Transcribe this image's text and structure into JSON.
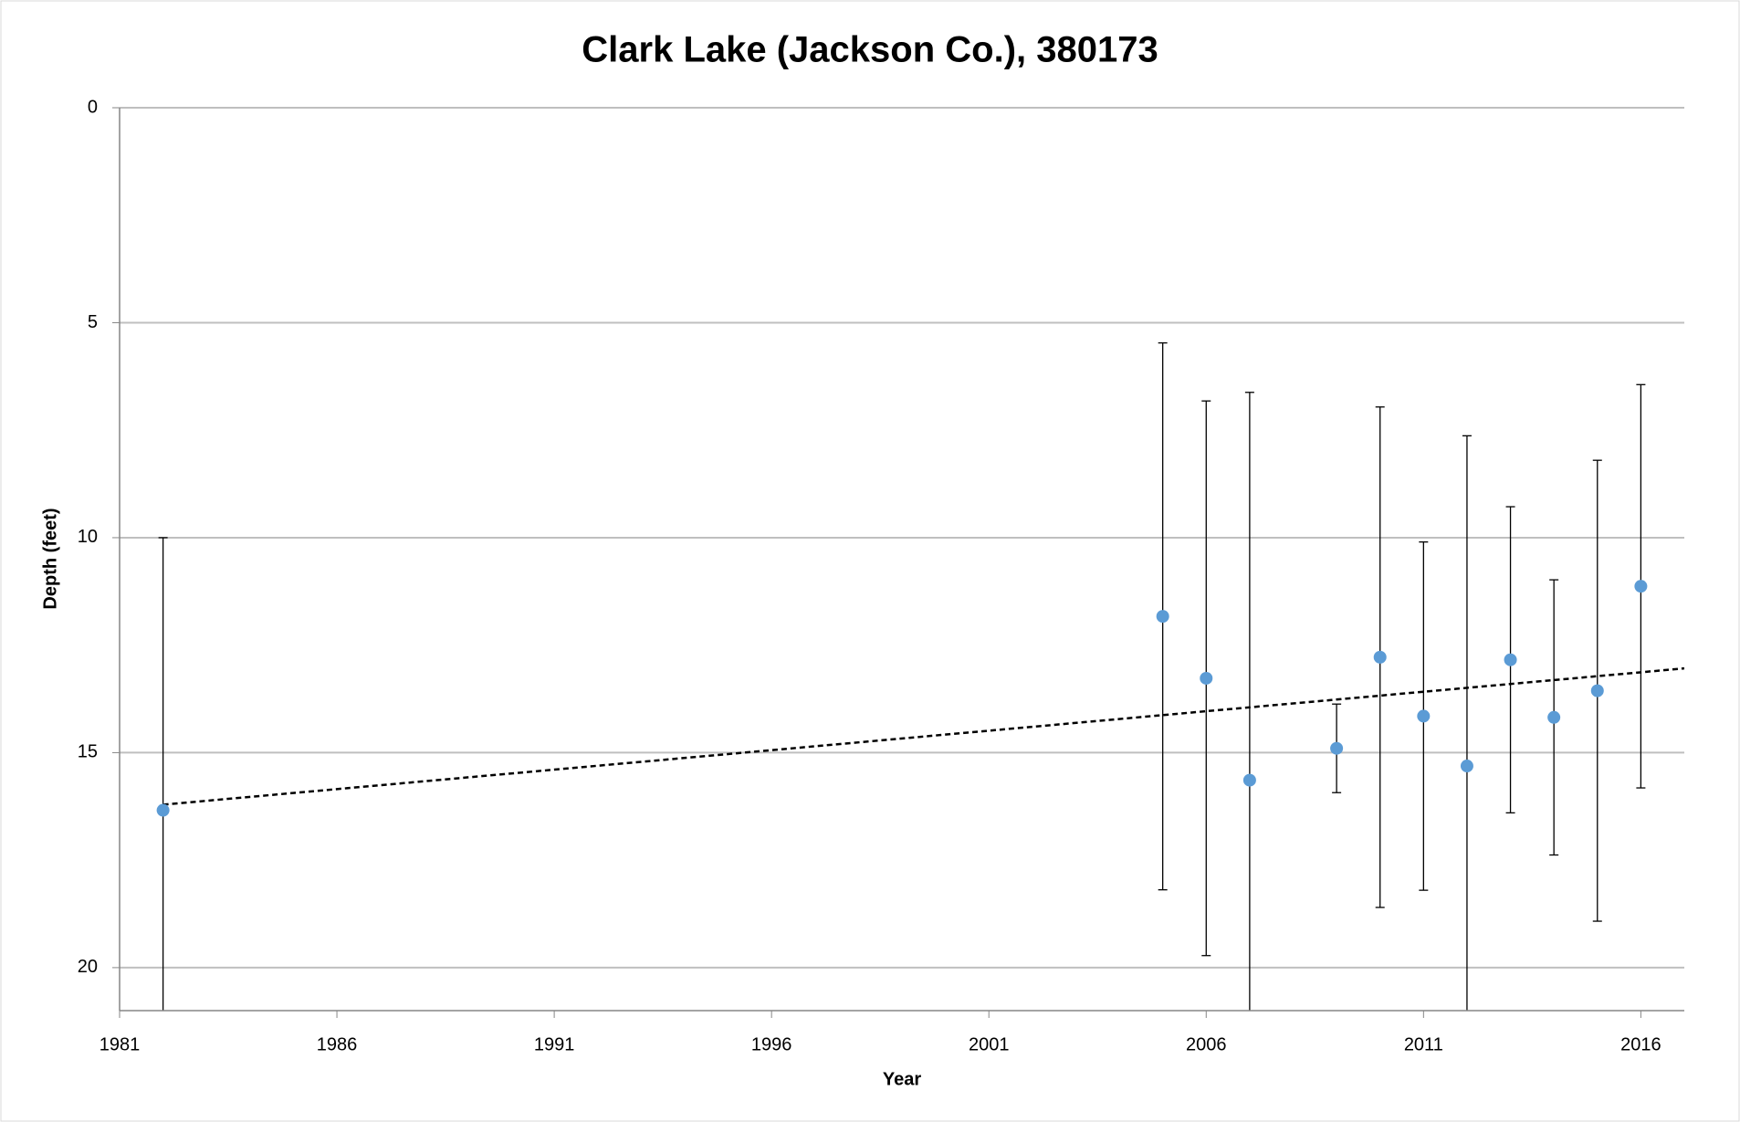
{
  "chart_data": {
    "type": "scatter",
    "title": "Clark Lake (Jackson Co.), 380173",
    "x_label": "Year",
    "y_label": "Depth (feet)",
    "x": [
      1982,
      2005,
      2006,
      2007,
      2009,
      2010,
      2011,
      2012,
      2013,
      2014,
      2015,
      2016
    ],
    "series": [
      {
        "color": "#5b9bd5",
        "values": [
          16.34,
          11.83,
          13.27,
          15.64,
          14.9,
          12.78,
          14.15,
          15.31,
          12.84,
          14.18,
          13.56,
          11.13
        ],
        "errors": [
          6.34,
          6.36,
          6.45,
          9.02,
          1.03,
          5.82,
          4.05,
          7.68,
          3.56,
          3.2,
          5.36,
          4.69
        ]
      }
    ],
    "trendline": {
      "x": [
        1982,
        2017
      ],
      "values": [
        16.21,
        13.04
      ],
      "color": "#000000",
      "dashed": true
    },
    "xlim": [
      1981,
      2017
    ],
    "xticks": [
      1981,
      1986,
      1991,
      1996,
      2001,
      2006,
      2011,
      2016
    ],
    "ylim": [
      0,
      21
    ],
    "yticks": [
      0,
      5,
      10,
      15,
      20
    ],
    "y_inverted": true,
    "grid": true
  }
}
